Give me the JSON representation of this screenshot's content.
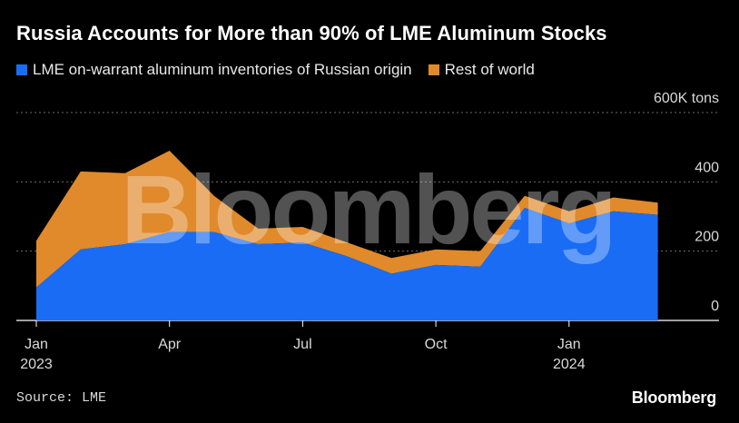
{
  "title": "Russia Accounts for More than 90% of LME Aluminum Stocks",
  "legend": [
    {
      "label": "LME on-warrant aluminum inventories of Russian origin",
      "color": "#1a6cf5"
    },
    {
      "label": "Rest of world",
      "color": "#e08a2c"
    }
  ],
  "source": "Source: LME",
  "brand": "Bloomberg",
  "watermark": "Bloomberg",
  "chart_data": {
    "type": "area",
    "stacked": true,
    "x": [
      "2023-01",
      "2023-02",
      "2023-03",
      "2023-04",
      "2023-05",
      "2023-06",
      "2023-07",
      "2023-08",
      "2023-09",
      "2023-10",
      "2023-11",
      "2023-12",
      "2024-01",
      "2024-02",
      "2024-03"
    ],
    "series": [
      {
        "name": "LME on-warrant aluminum inventories of Russian origin",
        "color": "#1a6cf5",
        "values": [
          95,
          205,
          220,
          255,
          255,
          220,
          225,
          185,
          135,
          160,
          155,
          325,
          280,
          315,
          305
        ]
      },
      {
        "name": "Rest of world",
        "color": "#e08a2c",
        "values": [
          135,
          225,
          205,
          235,
          105,
          45,
          45,
          40,
          45,
          45,
          45,
          35,
          35,
          40,
          35
        ]
      }
    ],
    "ylim": [
      0,
      600
    ],
    "ytick_values": [
      0,
      200,
      400,
      600
    ],
    "ytick_labels": [
      "0",
      "200",
      "400",
      "600K tons"
    ],
    "xtick_months": [
      "2023-01",
      "2023-04",
      "2023-07",
      "2023-10",
      "2024-01"
    ],
    "xtick_labels": [
      [
        "Jan",
        "2023"
      ],
      [
        "Apr",
        ""
      ],
      [
        "Jul",
        ""
      ],
      [
        "Oct",
        ""
      ],
      [
        "Jan",
        "2024"
      ]
    ],
    "grid": "horizontal-dotted",
    "legend_position": "top-left",
    "y_axis_side": "right"
  }
}
